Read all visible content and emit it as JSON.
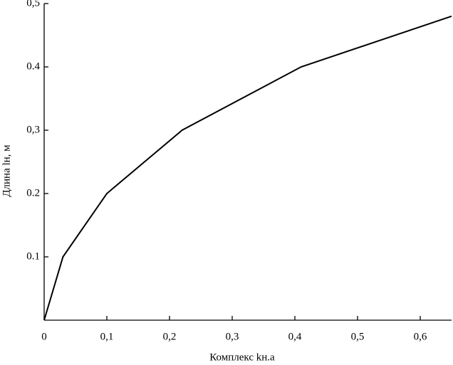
{
  "chart_data": {
    "type": "line",
    "x_label": "Комплекс kн.а",
    "y_label": "Длина lн, м",
    "x": [
      0,
      0.03,
      0.1,
      0.22,
      0.41,
      0.65
    ],
    "values": [
      0,
      0.1,
      0.2,
      0.3,
      0.4,
      0.48
    ],
    "color": "#000000",
    "xlim": [
      0,
      0.65
    ],
    "ylim": [
      0,
      0.5
    ],
    "xticks": [
      0,
      {
        "value": 0.1,
        "label": "0,1"
      },
      {
        "value": 0.2,
        "label": "0,2"
      },
      {
        "value": 0.3,
        "label": "0,3"
      },
      {
        "value": 0.4,
        "label": "0,4"
      },
      {
        "value": 0.5,
        "label": "0,5"
      },
      {
        "value": 0.6,
        "label": "0,6"
      }
    ],
    "yticks": [
      {
        "value": 0.1,
        "label": "0.1"
      },
      {
        "value": 0.2,
        "label": "0.2"
      },
      {
        "value": 0.3,
        "label": "0,3"
      },
      {
        "value": 0.4,
        "label": "0.4"
      },
      {
        "value": 0.5,
        "label": "0,5"
      }
    ],
    "grid": false
  }
}
